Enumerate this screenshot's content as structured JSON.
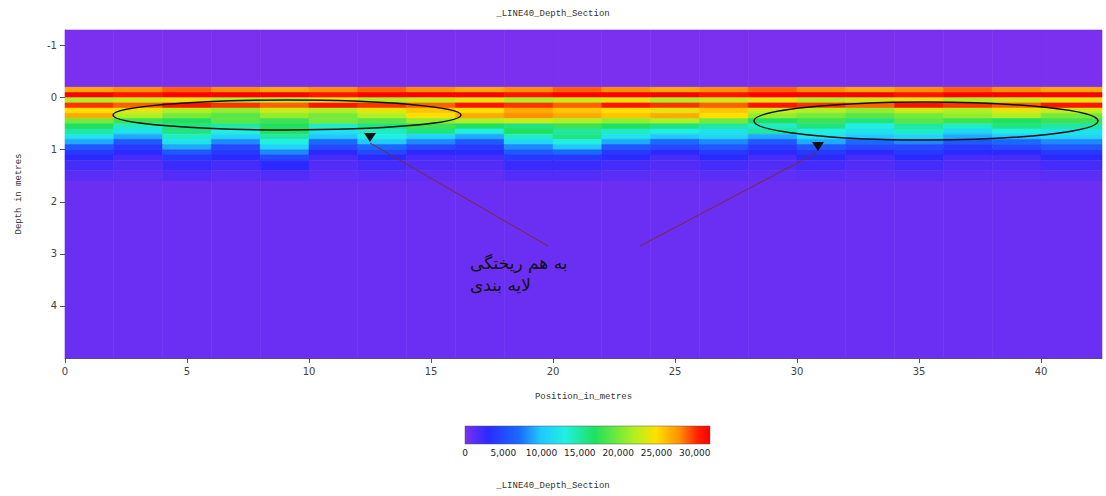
{
  "chart_data": {
    "type": "heatmap",
    "title": "_LINE40_Depth_Section",
    "x_label": "Position_in_metres",
    "y_label": "Depth in metres",
    "xlim": [
      0,
      42.5
    ],
    "ylim": [
      -1.3,
      5
    ],
    "xticks": [
      0,
      5,
      10,
      15,
      20,
      25,
      30,
      35,
      40
    ],
    "yticks": [
      -1,
      0,
      1,
      2,
      3,
      4
    ],
    "x_edges": [
      0,
      2,
      4,
      6,
      8,
      10,
      12,
      14,
      16,
      18,
      20,
      22,
      24,
      26,
      28,
      30,
      32,
      34,
      36,
      38,
      40,
      42.5
    ],
    "depth_edges": [
      -1.3,
      -0.2,
      -0.1,
      0,
      0.1,
      0.2,
      0.3,
      0.4,
      0.5,
      0.6,
      0.7,
      0.8,
      0.9,
      1.0,
      1.1,
      1.2,
      1.4,
      1.6,
      5
    ],
    "cells": [
      [
        0,
        0,
        0,
        0,
        0,
        0,
        0,
        0,
        0,
        0,
        0,
        0,
        0,
        0,
        0,
        0,
        0,
        0,
        0,
        0,
        0
      ],
      [
        27000,
        28000,
        29000,
        28000,
        27000,
        28000,
        29000,
        28000,
        27000,
        28000,
        29000,
        28000,
        27000,
        28000,
        29000,
        28000,
        27000,
        28000,
        29000,
        28000,
        27000
      ],
      [
        32000,
        31000,
        32000,
        33000,
        32000,
        31000,
        32000,
        33000,
        32000,
        31000,
        32000,
        33000,
        32000,
        31000,
        32000,
        33000,
        32000,
        31000,
        32000,
        33000,
        32000
      ],
      [
        22000,
        23000,
        24000,
        22000,
        23000,
        24000,
        22000,
        23000,
        24000,
        22000,
        23000,
        24000,
        22000,
        23000,
        24000,
        22000,
        23000,
        24000,
        22000,
        23000,
        24000
      ],
      [
        30000,
        29000,
        31000,
        30000,
        29000,
        31000,
        30000,
        29000,
        31000,
        30000,
        29000,
        31000,
        30000,
        29000,
        31000,
        30000,
        29000,
        31000,
        30000,
        29000,
        31000
      ],
      [
        25000,
        24000,
        22000,
        21000,
        23000,
        22000,
        24000,
        26000,
        25000,
        27000,
        26000,
        25000,
        24000,
        26000,
        23000,
        22000,
        21000,
        23000,
        22000,
        24000,
        23000
      ],
      [
        27000,
        22000,
        20000,
        19000,
        21000,
        20000,
        22000,
        25000,
        27000,
        28000,
        27000,
        26000,
        27000,
        25000,
        21000,
        20000,
        19000,
        20000,
        21000,
        22000,
        20000
      ],
      [
        20000,
        18000,
        17000,
        19000,
        18000,
        20000,
        19000,
        21000,
        22000,
        23000,
        22000,
        21000,
        22000,
        20000,
        17000,
        18000,
        16000,
        19000,
        18000,
        17000,
        18000
      ],
      [
        17000,
        14000,
        16000,
        15000,
        17000,
        14000,
        16000,
        18000,
        17000,
        16000,
        18000,
        17000,
        16000,
        15000,
        14000,
        16000,
        13000,
        15000,
        14000,
        16000,
        15000
      ],
      [
        15000,
        12000,
        16000,
        13000,
        17000,
        12000,
        14000,
        16000,
        13000,
        17000,
        15000,
        14000,
        13000,
        12000,
        15000,
        13000,
        12000,
        14000,
        11000,
        13000,
        12000
      ],
      [
        12000,
        9000,
        14000,
        11000,
        15000,
        10000,
        13000,
        11000,
        9000,
        14000,
        16000,
        12000,
        10000,
        11000,
        9000,
        12000,
        10000,
        11000,
        9000,
        10000,
        11000
      ],
      [
        9000,
        6000,
        12000,
        8000,
        13000,
        7000,
        10000,
        8000,
        6000,
        11000,
        13000,
        9000,
        7000,
        8000,
        6000,
        9000,
        7000,
        8000,
        6000,
        7000,
        8000
      ],
      [
        6000,
        4000,
        9000,
        5000,
        11000,
        5000,
        7000,
        5000,
        4000,
        8000,
        10000,
        6000,
        5000,
        6000,
        4000,
        6000,
        5000,
        5000,
        4000,
        5000,
        6000
      ],
      [
        4000,
        3000,
        6000,
        4000,
        8000,
        3000,
        5000,
        3000,
        3000,
        6000,
        7000,
        4000,
        3000,
        4000,
        3000,
        4000,
        3000,
        4000,
        3000,
        3000,
        4000
      ],
      [
        3000,
        2000,
        4000,
        3000,
        5000,
        2000,
        3000,
        2000,
        2000,
        4000,
        4000,
        3000,
        2000,
        3000,
        2000,
        3000,
        2000,
        3000,
        2000,
        2000,
        3000
      ],
      [
        2000,
        1500,
        2500,
        2000,
        3000,
        1500,
        2000,
        1500,
        1500,
        2500,
        2500,
        2000,
        1500,
        2000,
        1500,
        2000,
        1500,
        2000,
        1500,
        1500,
        2000
      ],
      [
        1200,
        1000,
        1500,
        1200,
        1500,
        1000,
        1200,
        1000,
        1000,
        1500,
        1500,
        1200,
        1000,
        1200,
        1000,
        1200,
        1000,
        1200,
        1000,
        1000,
        1200
      ],
      [
        600,
        600,
        600,
        600,
        600,
        600,
        600,
        600,
        600,
        600,
        600,
        600,
        600,
        600,
        600,
        600,
        600,
        600,
        600,
        600,
        600
      ]
    ],
    "colorbar": {
      "range": [
        0,
        32000
      ],
      "ticks": [
        0,
        5000,
        10000,
        15000,
        20000,
        25000,
        30000
      ],
      "title": "_LINE40_Depth_Section"
    },
    "annotation": "به هم ریختگی لایه بندی"
  }
}
